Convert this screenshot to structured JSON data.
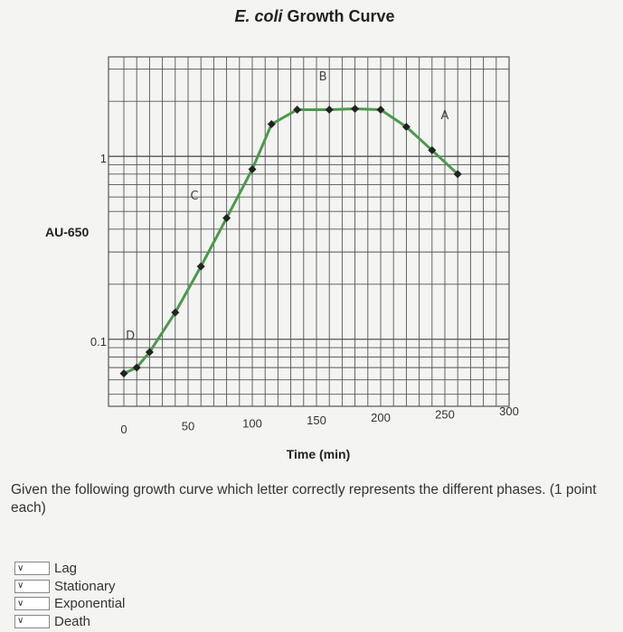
{
  "chart_data": {
    "type": "line",
    "title_prefix": "E. coli",
    "title_suffix": "Growth Curve",
    "xlabel": "Time (min)",
    "ylabel": "AU-650",
    "x_ticks": [
      "0",
      "50",
      "100",
      "150",
      "200",
      "250",
      "300"
    ],
    "y_ticks": [
      "1",
      "0.1"
    ],
    "xlim": [
      0,
      300
    ],
    "ylim_log": [
      0.043,
      3.5
    ],
    "y_scale": "log",
    "grid": true,
    "line_color": "#4a9a4a",
    "series": [
      {
        "x": [
          0,
          10,
          20,
          40,
          60,
          80,
          100,
          115,
          135,
          160,
          180,
          200,
          220,
          240,
          260
        ],
        "y": [
          0.065,
          0.07,
          0.085,
          0.14,
          0.25,
          0.46,
          0.85,
          1.5,
          1.8,
          1.8,
          1.82,
          1.8,
          1.45,
          1.08,
          0.8
        ]
      }
    ],
    "annotations": [
      {
        "text": "D",
        "x": 5,
        "y": 0.1
      },
      {
        "text": "C",
        "x": 55,
        "y": 0.58
      },
      {
        "text": "B",
        "x": 155,
        "y": 2.6
      },
      {
        "text": "A",
        "x": 250,
        "y": 1.6
      }
    ]
  },
  "question": {
    "text": "Given the following growth curve which letter correctly represents the different phases. (1 point each)"
  },
  "answers": [
    {
      "label": "Lag",
      "value": ""
    },
    {
      "label": "Stationary",
      "value": ""
    },
    {
      "label": "Exponential",
      "value": ""
    },
    {
      "label": "Death",
      "value": ""
    }
  ],
  "colors": {
    "grid": "#555555",
    "background": "#f4f4f2"
  },
  "icons": {
    "dropdown": "chevron-down-icon"
  }
}
